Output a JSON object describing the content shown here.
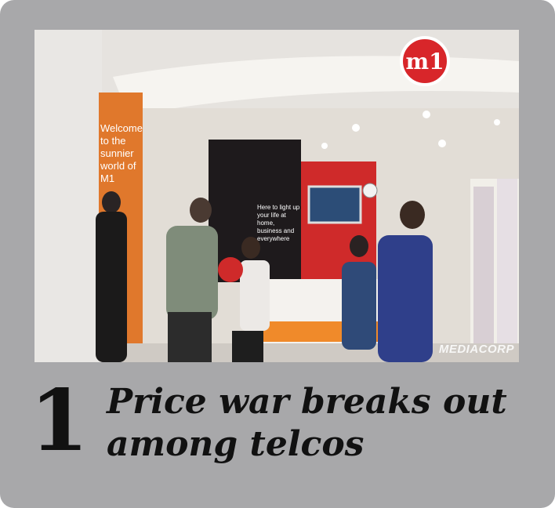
{
  "rank": "1",
  "headline": {
    "line1": "Price war breaks out",
    "line2": "among telcos"
  },
  "photo": {
    "logo_text": "m1",
    "poster_text": [
      "Welcome",
      "to the",
      "sunnier",
      "world of",
      "M1"
    ],
    "banner_text": [
      "Here to light up",
      "your life at home,",
      "business and",
      "everywhere"
    ],
    "watermark": "MEDIACORP"
  },
  "colors": {
    "card_bg": "#a8a8aa",
    "brand_red": "#d8262a",
    "brand_orange": "#f08a2a",
    "text": "#111111"
  }
}
